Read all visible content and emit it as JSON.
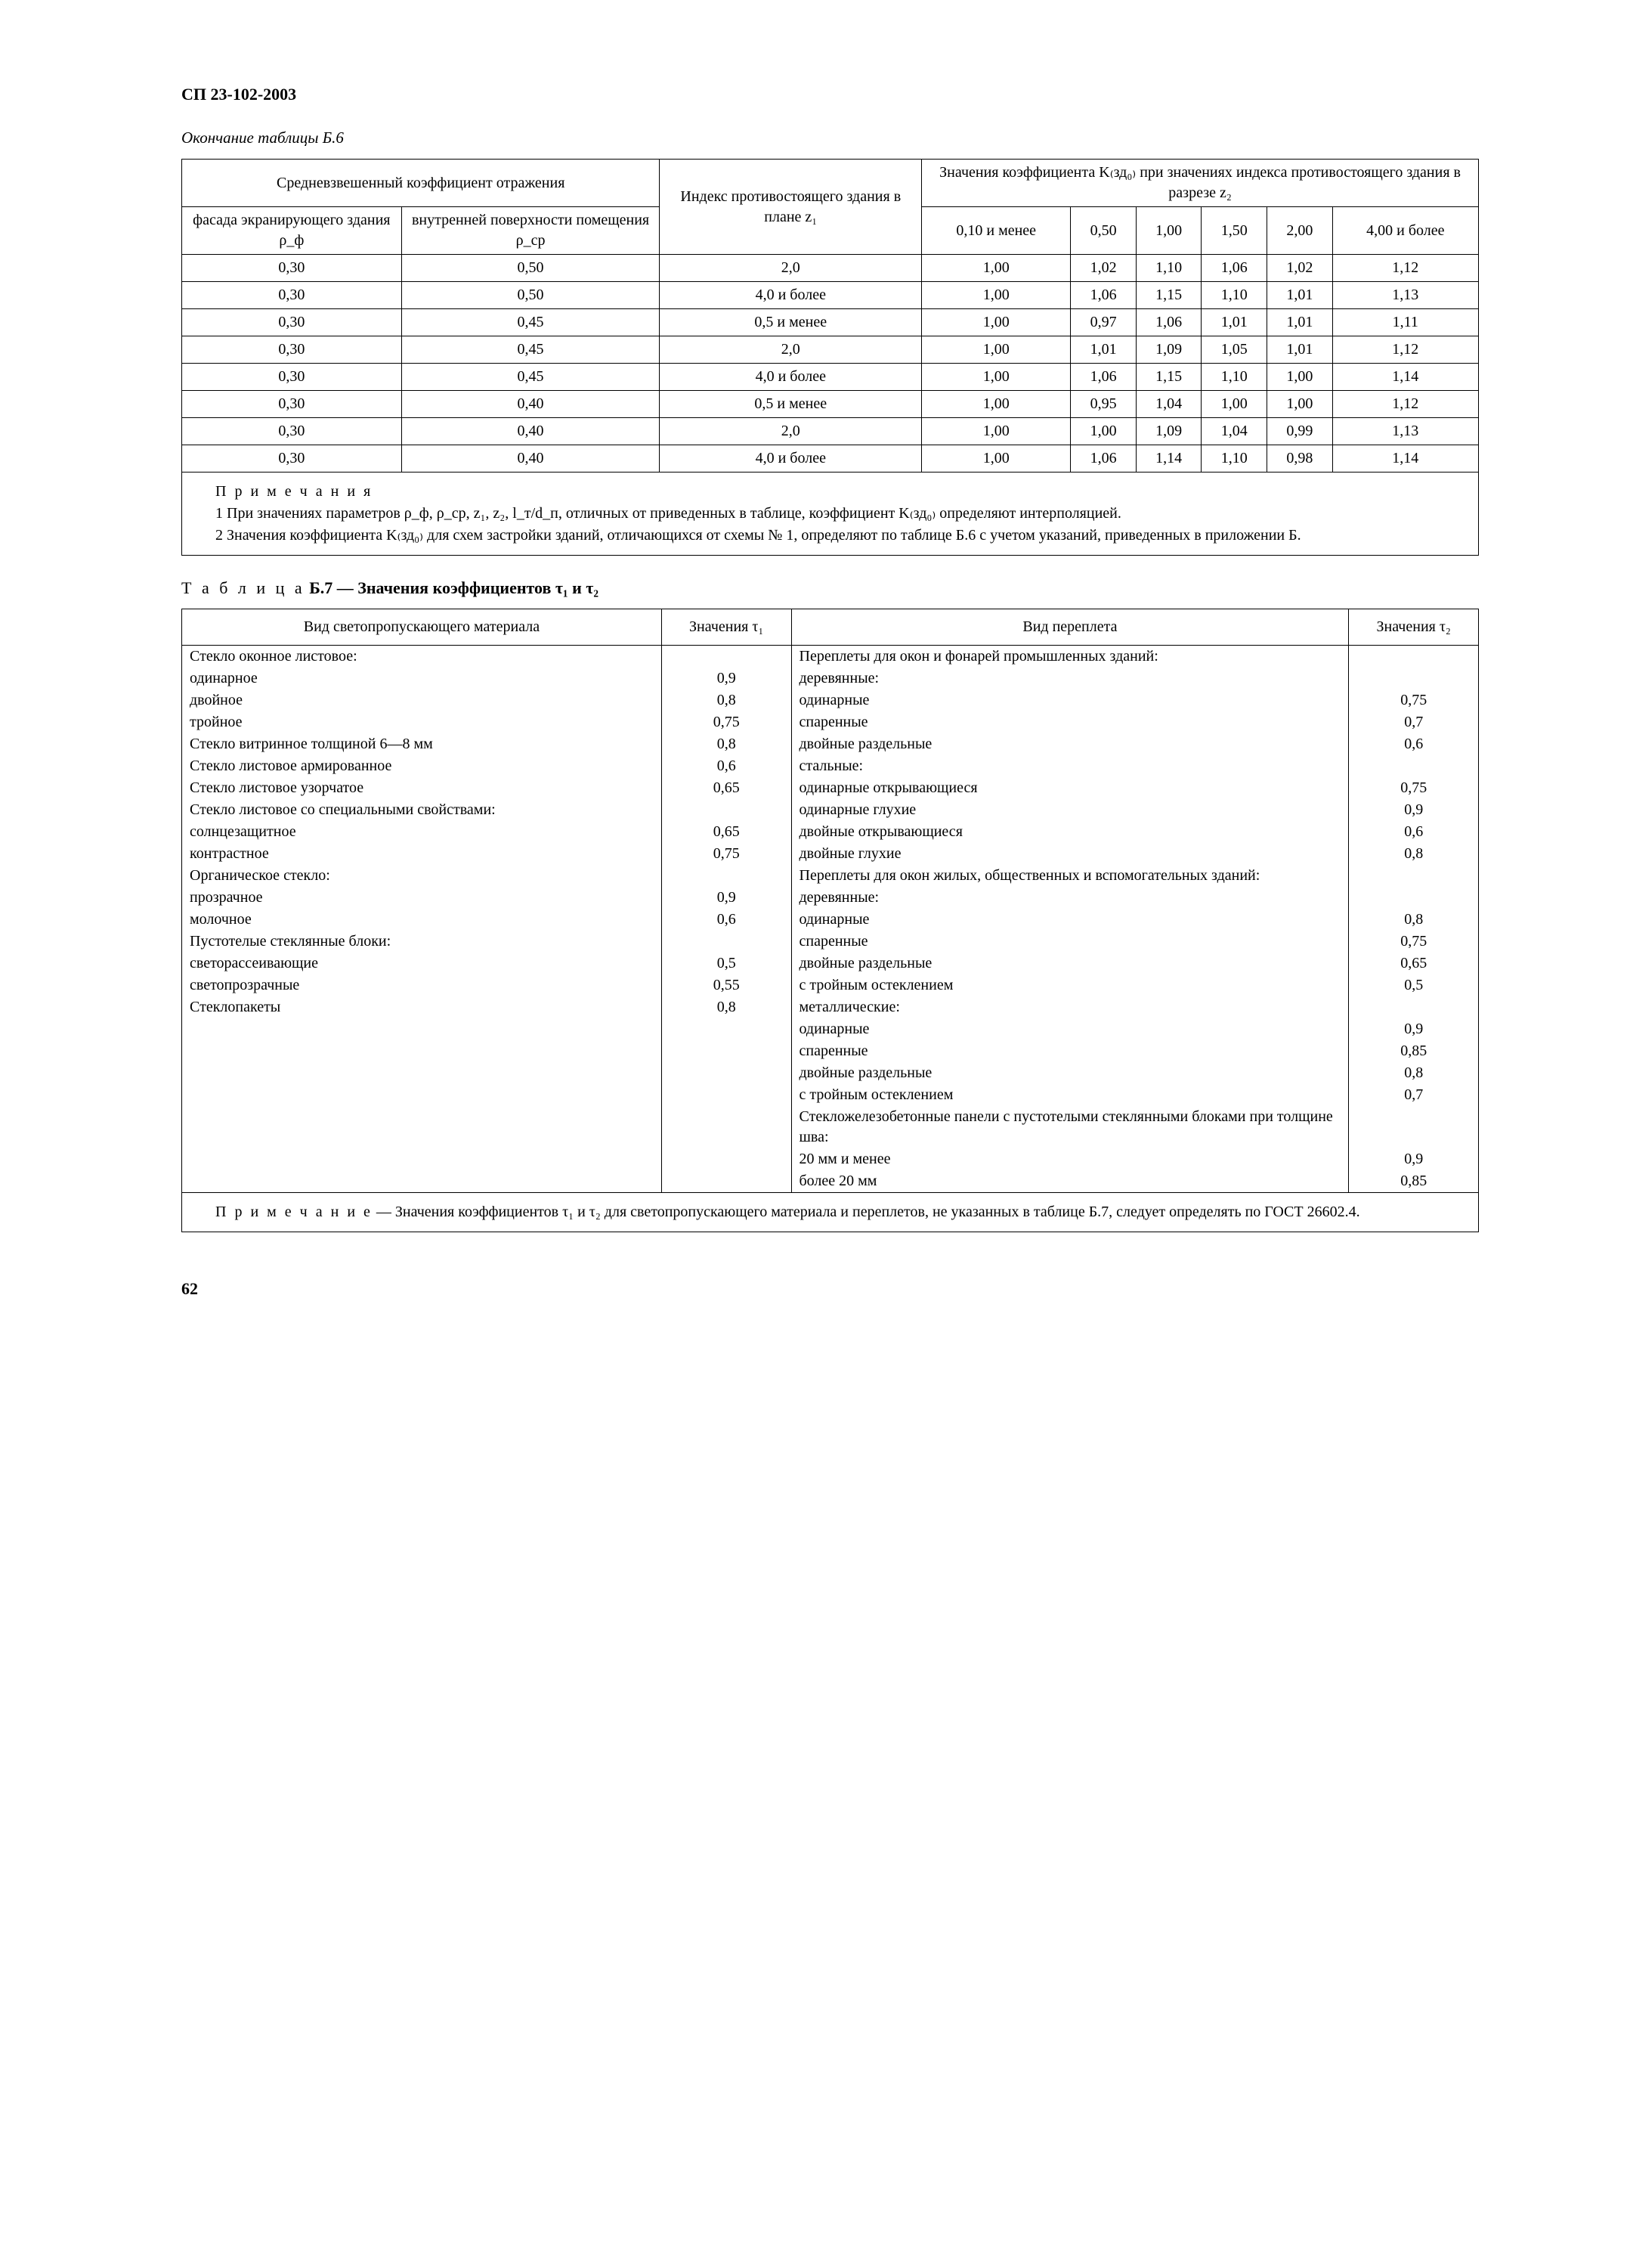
{
  "doc_code": "СП 23-102-2003",
  "continuation_label": "Окончание таблицы Б.6",
  "b6": {
    "hdr_avg_refl": "Средневзвешенный коэффициент отражения",
    "hdr_index_plan": "Индекс противо­стоящего здания в плане z₁",
    "hdr_values_group": "Значения коэффициента K₍зд₀₎ при значениях индекса противостоящего здания в разрезе z₂",
    "hdr_facade": "фасада экранирую­щего здания ρ_ф",
    "hdr_interior": "внутренней поверх­ности помеще­ния ρ_ср",
    "cols_z2": [
      "0,10 и менее",
      "0,50",
      "1,00",
      "1,50",
      "2,00",
      "4,00 и более"
    ],
    "rows": [
      [
        "0,30",
        "0,50",
        "2,0",
        "1,00",
        "1,02",
        "1,10",
        "1,06",
        "1,02",
        "1,12"
      ],
      [
        "0,30",
        "0,50",
        "4,0 и более",
        "1,00",
        "1,06",
        "1,15",
        "1,10",
        "1,01",
        "1,13"
      ],
      [
        "0,30",
        "0,45",
        "0,5 и менее",
        "1,00",
        "0,97",
        "1,06",
        "1,01",
        "1,01",
        "1,11"
      ],
      [
        "0,30",
        "0,45",
        "2,0",
        "1,00",
        "1,01",
        "1,09",
        "1,05",
        "1,01",
        "1,12"
      ],
      [
        "0,30",
        "0,45",
        "4,0 и более",
        "1,00",
        "1,06",
        "1,15",
        "1,10",
        "1,00",
        "1,14"
      ],
      [
        "0,30",
        "0,40",
        "0,5 и менее",
        "1,00",
        "0,95",
        "1,04",
        "1,00",
        "1,00",
        "1,12"
      ],
      [
        "0,30",
        "0,40",
        "2,0",
        "1,00",
        "1,00",
        "1,09",
        "1,04",
        "0,99",
        "1,13"
      ],
      [
        "0,30",
        "0,40",
        "4,0 и более",
        "1,00",
        "1,06",
        "1,14",
        "1,10",
        "0,98",
        "1,14"
      ]
    ],
    "notes_label": "П р и м е ч а н и я",
    "note1": "1 При значениях параметров ρ_ф, ρ_ср, z₁, z₂, l_т/d_п, отличных от приведенных в таблице, коэффициент K₍зд₀₎ определяют интерполяцией.",
    "note2": "2 Значения коэффициента K₍зд₀₎ для схем застройки зданий, отличающихся от схемы № 1, определяют по таблице Б.6 с учетом указаний, приведенных в приложении Б."
  },
  "b7_title_spaced": "Т а б л и ц а",
  "b7_title_rest": " Б.7 — Значения коэффициентов τ₁ и τ₂",
  "b7": {
    "hdr_material": "Вид светопропускающего материала",
    "hdr_tau1": "Значения τ₁",
    "hdr_frame": "Вид переплета",
    "hdr_tau2": "Значения τ₂",
    "left": [
      {
        "t": "Стекло оконное листовое:",
        "v": "",
        "cls": ""
      },
      {
        "t": "одинарное",
        "v": "0,9",
        "cls": "ind1"
      },
      {
        "t": "двойное",
        "v": "0,8",
        "cls": "ind1"
      },
      {
        "t": "тройное",
        "v": "0,75",
        "cls": "ind1"
      },
      {
        "t": "Стекло витринное толщиной 6—8 мм",
        "v": "0,8",
        "cls": ""
      },
      {
        "t": "Стекло листовое армированное",
        "v": "0,6",
        "cls": ""
      },
      {
        "t": "Стекло листовое узорчатое",
        "v": "0,65",
        "cls": ""
      },
      {
        "t": "Стекло листовое со специальными свойствами:",
        "v": "",
        "cls": ""
      },
      {
        "t": "солнцезащитное",
        "v": "0,65",
        "cls": "ind1"
      },
      {
        "t": "контрастное",
        "v": "0,75",
        "cls": "ind1"
      },
      {
        "t": "Органическое стекло:",
        "v": "",
        "cls": ""
      },
      {
        "t": "прозрачное",
        "v": "0,9",
        "cls": "ind1"
      },
      {
        "t": "молочное",
        "v": "0,6",
        "cls": "ind1"
      },
      {
        "t": "Пустотелые стеклянные блоки:",
        "v": "",
        "cls": ""
      },
      {
        "t": "светорассеивающие",
        "v": "0,5",
        "cls": "ind1"
      },
      {
        "t": "светопрозрачные",
        "v": "0,55",
        "cls": "ind1"
      },
      {
        "t": "Стеклопакеты",
        "v": "0,8",
        "cls": ""
      }
    ],
    "right": [
      {
        "t": "Переплеты для окон и фонарей промыш­ленных зданий:",
        "v": "",
        "cls": ""
      },
      {
        "t": "деревянные:",
        "v": "",
        "cls": "ind1"
      },
      {
        "t": "одинарные",
        "v": "0,75",
        "cls": "ind2"
      },
      {
        "t": "спаренные",
        "v": "0,7",
        "cls": "ind2"
      },
      {
        "t": "двойные раздельные",
        "v": "0,6",
        "cls": "ind2"
      },
      {
        "t": "стальные:",
        "v": "",
        "cls": "ind1"
      },
      {
        "t": "одинарные открывающиеся",
        "v": "0,75",
        "cls": "ind2"
      },
      {
        "t": "одинарные глухие",
        "v": "0,9",
        "cls": "ind2"
      },
      {
        "t": "двойные открывающиеся",
        "v": "0,6",
        "cls": "ind2"
      },
      {
        "t": "двойные глухие",
        "v": "0,8",
        "cls": "ind2"
      },
      {
        "t": "Переплеты для окон жилых, общественных и вспомогательных зданий:",
        "v": "",
        "cls": ""
      },
      {
        "t": "деревянные:",
        "v": "",
        "cls": "ind1"
      },
      {
        "t": "одинарные",
        "v": "0,8",
        "cls": "ind2"
      },
      {
        "t": "спаренные",
        "v": "0,75",
        "cls": "ind2"
      },
      {
        "t": "двойные раздельные",
        "v": "0,65",
        "cls": "ind2"
      },
      {
        "t": "с тройным остеклением",
        "v": "0,5",
        "cls": "ind2"
      },
      {
        "t": "металлические:",
        "v": "",
        "cls": "ind1"
      },
      {
        "t": "одинарные",
        "v": "0,9",
        "cls": "ind2"
      },
      {
        "t": "спаренные",
        "v": "0,85",
        "cls": "ind2"
      },
      {
        "t": "двойные раздельные",
        "v": "0,8",
        "cls": "ind2"
      },
      {
        "t": "с тройным остеклением",
        "v": "0,7",
        "cls": "ind2"
      },
      {
        "t": "Стекложелезобетонные панели с пустотелы­ми стеклянными блоками при толщине шва:",
        "v": "",
        "cls": ""
      },
      {
        "t": "20 мм и менее",
        "v": "0,9",
        "cls": "ind2"
      },
      {
        "t": "более 20 мм",
        "v": "0,85",
        "cls": "ind2"
      }
    ],
    "note_label": "П р и м е ч а н и е",
    "note_text": " — Значения коэффициентов τ₁ и τ₂ для светопропускающего материала и переплетов, не указанных в таблице Б.7, следует определять по ГОСТ 26602.4."
  },
  "page_number": "62"
}
